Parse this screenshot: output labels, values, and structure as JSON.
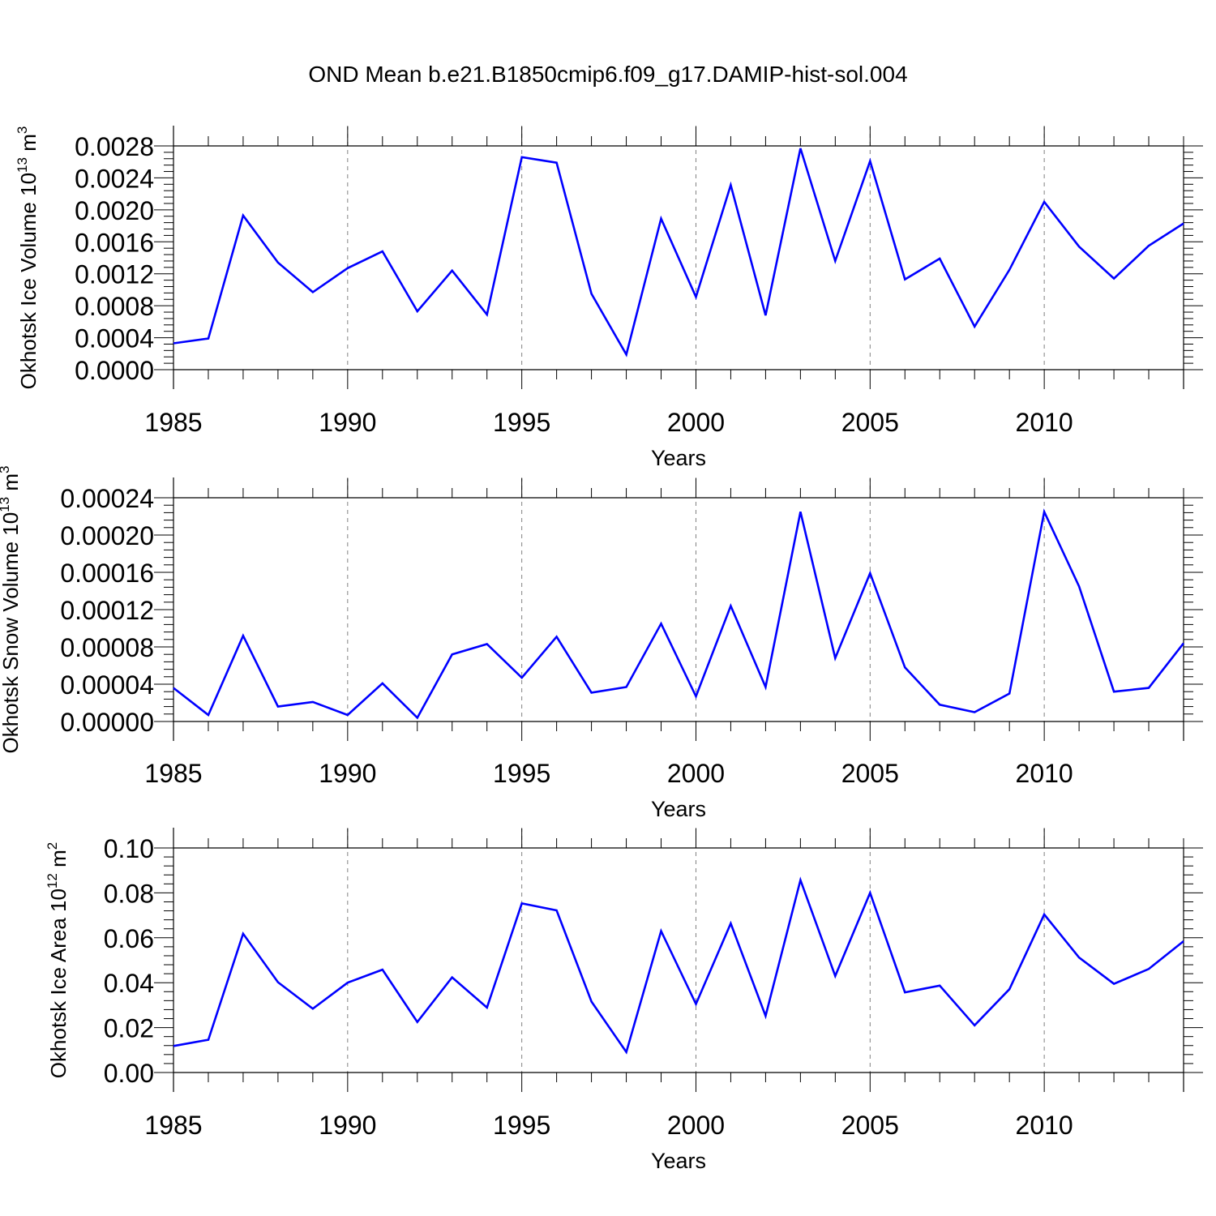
{
  "title": "OND Mean b.e21.B1850cmip6.f09_g17.DAMIP-hist-sol.004",
  "colors": {
    "line": "#0000ff",
    "axis": "#000000",
    "grid": "#808080"
  },
  "chart_data": [
    {
      "type": "line",
      "ylabel": "Okhotsk Ice Volume 10",
      "ylabel_exp": "13",
      "ylabel_unit": " m",
      "ylabel_unit_exp": "3",
      "xlabel": "Years",
      "xlim": [
        1985,
        2014
      ],
      "ylim": [
        0,
        0.0028
      ],
      "yticks": [
        "0.0000",
        "0.0004",
        "0.0008",
        "0.0012",
        "0.0016",
        "0.0020",
        "0.0024",
        "0.0028"
      ],
      "xticks": [
        "1985",
        "1990",
        "1995",
        "2000",
        "2005",
        "2010"
      ],
      "grid": "vertical dashed at major x ticks",
      "x": [
        1985,
        1986,
        1987,
        1988,
        1989,
        1990,
        1991,
        1992,
        1993,
        1994,
        1995,
        1996,
        1997,
        1998,
        1999,
        2000,
        2001,
        2002,
        2003,
        2004,
        2005,
        2006,
        2007,
        2008,
        2009,
        2010,
        2011,
        2012,
        2013,
        2014
      ],
      "values": [
        0.00033,
        0.00039,
        0.00193,
        0.00134,
        0.00097,
        0.00127,
        0.00148,
        0.00073,
        0.00124,
        0.00069,
        0.00266,
        0.00259,
        0.00095,
        0.00019,
        0.00189,
        0.00091,
        0.00231,
        0.00068,
        0.00277,
        0.00136,
        0.00261,
        0.00113,
        0.00139,
        0.00054,
        0.00125,
        0.0021,
        0.00154,
        0.00114,
        0.00155,
        0.00183
      ]
    },
    {
      "type": "line",
      "ylabel": "Okhotsk Snow Volume 10",
      "ylabel_exp": "13",
      "ylabel_unit": " m",
      "ylabel_unit_exp": "3",
      "xlabel": "Years",
      "xlim": [
        1985,
        2014
      ],
      "ylim": [
        0,
        0.00024
      ],
      "yticks": [
        "0.00000",
        "0.00004",
        "0.00008",
        "0.00012",
        "0.00016",
        "0.00020",
        "0.00024"
      ],
      "xticks": [
        "1985",
        "1990",
        "1995",
        "2000",
        "2005",
        "2010"
      ],
      "grid": "vertical dashed at major x ticks",
      "x": [
        1985,
        1986,
        1987,
        1988,
        1989,
        1990,
        1991,
        1992,
        1993,
        1994,
        1995,
        1996,
        1997,
        1998,
        1999,
        2000,
        2001,
        2002,
        2003,
        2004,
        2005,
        2006,
        2007,
        2008,
        2009,
        2010,
        2011,
        2012,
        2013,
        2014
      ],
      "values": [
        3.6e-05,
        7e-06,
        9.2e-05,
        1.6e-05,
        2.1e-05,
        7e-06,
        4.1e-05,
        4e-06,
        7.2e-05,
        8.3e-05,
        4.7e-05,
        9.1e-05,
        3.1e-05,
        3.7e-05,
        0.000105,
        2.7e-05,
        0.000124,
        3.7e-05,
        0.000225,
        6.8e-05,
        0.000159,
        5.8e-05,
        1.8e-05,
        1e-05,
        3e-05,
        0.000225,
        0.000145,
        3.2e-05,
        3.6e-05,
        8.4e-05
      ]
    },
    {
      "type": "line",
      "ylabel": "Okhotsk Ice Area 10",
      "ylabel_exp": "12",
      "ylabel_unit": " m",
      "ylabel_unit_exp": "2",
      "xlabel": "Years",
      "xlim": [
        1985,
        2014
      ],
      "ylim": [
        0,
        0.1
      ],
      "yticks": [
        "0.00",
        "0.02",
        "0.04",
        "0.06",
        "0.08",
        "0.10"
      ],
      "xticks": [
        "1985",
        "1990",
        "1995",
        "2000",
        "2005",
        "2010"
      ],
      "grid": "vertical dashed at major x ticks",
      "x": [
        1985,
        1986,
        1987,
        1988,
        1989,
        1990,
        1991,
        1992,
        1993,
        1994,
        1995,
        1996,
        1997,
        1998,
        1999,
        2000,
        2001,
        2002,
        2003,
        2004,
        2005,
        2006,
        2007,
        2008,
        2009,
        2010,
        2011,
        2012,
        2013,
        2014
      ],
      "values": [
        0.0118,
        0.0146,
        0.0618,
        0.0402,
        0.0284,
        0.04,
        0.0458,
        0.0225,
        0.0424,
        0.0289,
        0.0753,
        0.0722,
        0.0316,
        0.0091,
        0.063,
        0.0305,
        0.0664,
        0.0252,
        0.0857,
        0.043,
        0.08,
        0.0357,
        0.0387,
        0.021,
        0.0371,
        0.0704,
        0.0512,
        0.0395,
        0.0461,
        0.0585
      ]
    }
  ]
}
